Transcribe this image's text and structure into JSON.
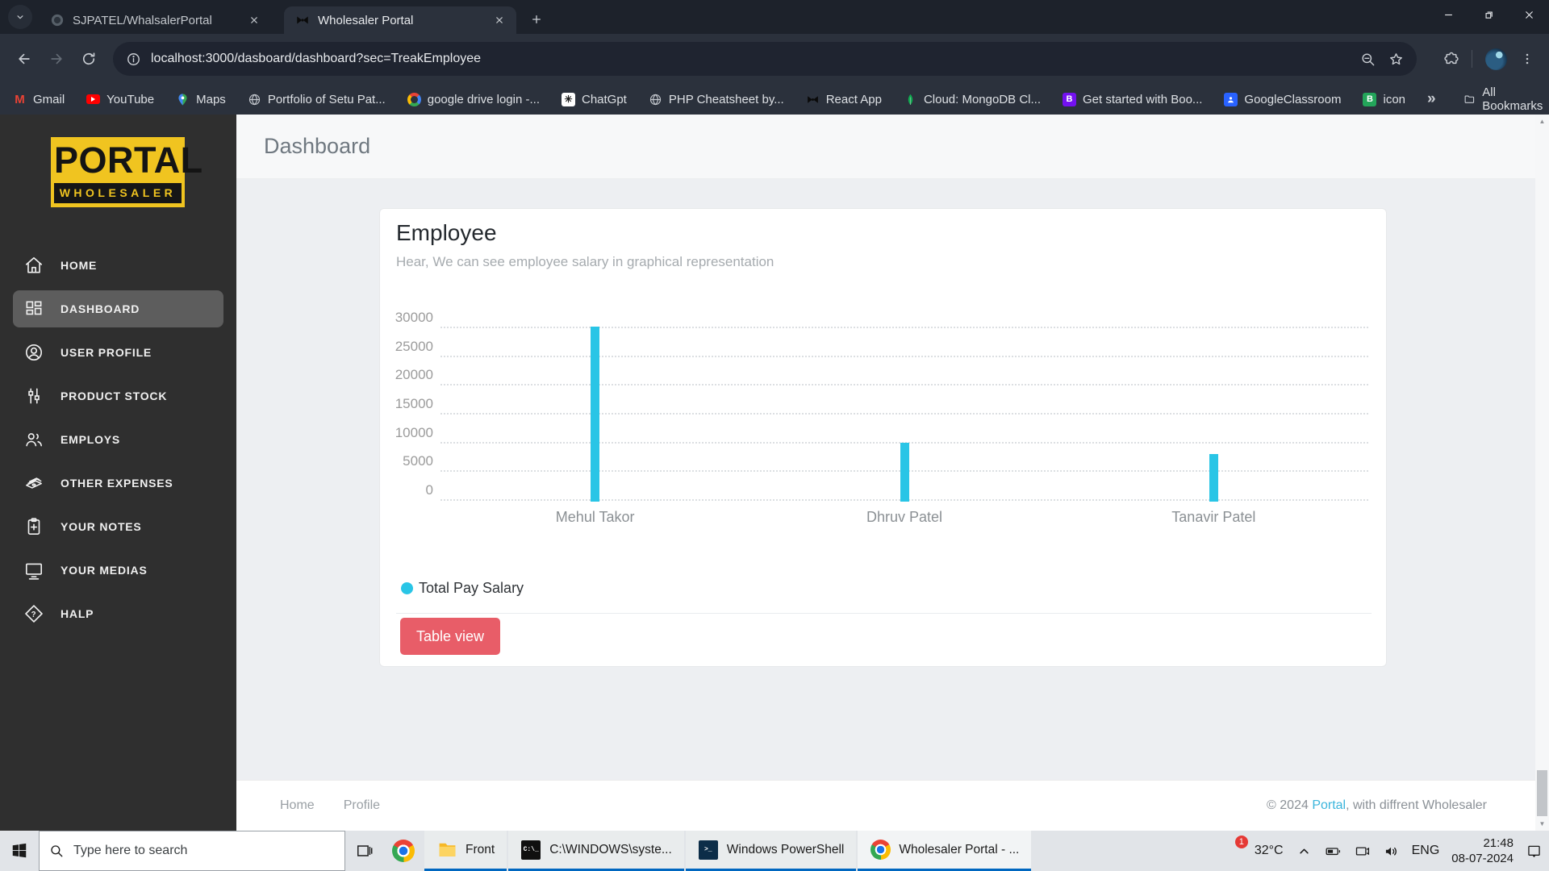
{
  "colors": {
    "bar_cyan": "#29c5e6",
    "button_red": "#e85d68",
    "logo_yellow": "#f0c420",
    "link_blue": "#3bb5dc",
    "taskbar_underline": "#0067c0"
  },
  "browser": {
    "tabs": [
      {
        "title": "SJPATEL/WhalsalerPortal",
        "favicon": "github-icon",
        "active": false
      },
      {
        "title": "Wholesaler Portal",
        "favicon": "bowtie-icon",
        "active": true
      }
    ],
    "url": "localhost:3000/dasboard/dashboard?sec=TreakEmployee",
    "bookmarks": [
      {
        "label": "Gmail",
        "icon": "gmail-icon"
      },
      {
        "label": "YouTube",
        "icon": "youtube-icon"
      },
      {
        "label": "Maps",
        "icon": "maps-icon"
      },
      {
        "label": "Portfolio of Setu Pat...",
        "icon": "globe-icon"
      },
      {
        "label": "google drive login -...",
        "icon": "google-icon"
      },
      {
        "label": "ChatGpt",
        "icon": "chatgpt-icon"
      },
      {
        "label": "PHP Cheatsheet by...",
        "icon": "globe-icon"
      },
      {
        "label": "React App",
        "icon": "bowtie-icon"
      },
      {
        "label": "Cloud: MongoDB Cl...",
        "icon": "mongodb-icon"
      },
      {
        "label": "Get started with Boo...",
        "icon": "bootstrap-icon"
      },
      {
        "label": "GoogleClassroom",
        "icon": "classroom-icon"
      },
      {
        "label": "icon",
        "icon": "green-b-icon"
      }
    ],
    "overflow_chevron": "»",
    "all_bookmarks_label": "All Bookmarks"
  },
  "sidebar": {
    "logo_title": "PORTAL",
    "logo_subtitle": "WHOLESALER",
    "items": [
      {
        "label": "HOME",
        "icon": "home-icon",
        "active": false
      },
      {
        "label": "DASHBOARD",
        "icon": "dashboard-icon",
        "active": true
      },
      {
        "label": "USER PROFILE",
        "icon": "user-icon",
        "active": false
      },
      {
        "label": "PRODUCT STOCK",
        "icon": "product-stock-icon",
        "active": false
      },
      {
        "label": "EMPLOYS",
        "icon": "employs-icon",
        "active": false
      },
      {
        "label": "OTHER EXPENSES",
        "icon": "expenses-icon",
        "active": false
      },
      {
        "label": "YOUR NOTES",
        "icon": "notes-icon",
        "active": false
      },
      {
        "label": "YOUR MEDIAS",
        "icon": "medias-icon",
        "active": false
      },
      {
        "label": "HALP",
        "icon": "help-icon",
        "active": false
      }
    ]
  },
  "header": {
    "title": "Dashboard"
  },
  "card": {
    "title": "Employee",
    "subtitle": "Hear, We can see employee salary in graphical representation",
    "button_label": "Table view"
  },
  "chart_data": {
    "type": "bar",
    "title": "Employee",
    "categories": [
      "Mehul Takor",
      "Dhruv Patel",
      "Tanavir Patel"
    ],
    "series": [
      {
        "name": "Total Pay Salary",
        "values": [
          30000,
          9860,
          7890
        ],
        "color": "#29c5e6"
      }
    ],
    "xlabel": "",
    "ylabel": "",
    "ylim": [
      0,
      30000
    ],
    "yticks": [
      30000,
      25000,
      20000,
      15000,
      10000,
      5000,
      0
    ],
    "grid": "dotted-horizontal",
    "legend_position": "bottom-left"
  },
  "footer": {
    "links": [
      "Home",
      "Profile"
    ],
    "copyright_prefix": "© 2024 ",
    "copyright_link": "Portal",
    "copyright_suffix": ", with diffrent Wholesaler"
  },
  "taskbar": {
    "search_placeholder": "Type here to search",
    "apps": [
      {
        "label": "Front",
        "icon": "folder-icon",
        "active": false
      },
      {
        "label": "C:\\WINDOWS\\syste...",
        "icon": "cmd-icon",
        "active": false
      },
      {
        "label": "Windows PowerShell",
        "icon": "powershell-icon",
        "active": false
      },
      {
        "label": "Wholesaler Portal - ...",
        "icon": "chrome-icon",
        "active": true
      }
    ],
    "tray": {
      "weather_badge": "1",
      "temperature": "32°C",
      "language": "ENG",
      "time": "21:48",
      "date": "08-07-2024"
    }
  }
}
